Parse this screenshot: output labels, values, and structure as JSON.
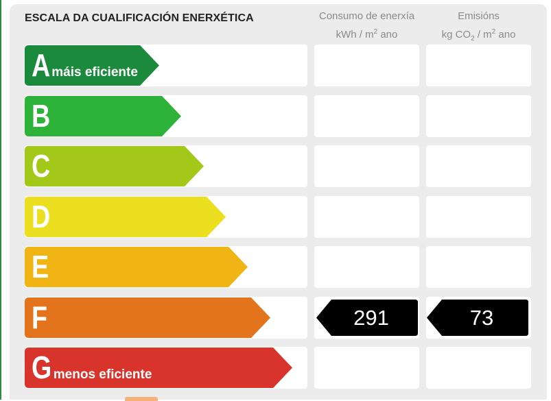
{
  "title": "ESCALA DA CUALIFICACIÓN ENERXÉTICA",
  "columns": {
    "consumption": {
      "line1": "Consumo de enerxía",
      "line2_unit": "kWh / m",
      "line2_sup": "2",
      "line2_rest": " ano"
    },
    "emissions": {
      "line1": "Emisións",
      "line2_unit": "kg CO",
      "line2_sub": "2",
      "line2_rest": " / m",
      "line2_sup": "2",
      "line2_rest2": " ano"
    }
  },
  "ratings": [
    {
      "letter": "A",
      "note": "máis eficiente",
      "color": "#1b8a3c",
      "consumption": "",
      "emissions": ""
    },
    {
      "letter": "B",
      "note": "",
      "color": "#2db33a",
      "consumption": "",
      "emissions": ""
    },
    {
      "letter": "C",
      "note": "",
      "color": "#a2c91a",
      "consumption": "",
      "emissions": ""
    },
    {
      "letter": "D",
      "note": "",
      "color": "#ecdf1f",
      "consumption": "",
      "emissions": ""
    },
    {
      "letter": "E",
      "note": "",
      "color": "#f0b414",
      "consumption": "",
      "emissions": ""
    },
    {
      "letter": "F",
      "note": "",
      "color": "#e4741c",
      "consumption": "291",
      "emissions": "73"
    },
    {
      "letter": "G",
      "note": "menos eficiente",
      "color": "#d9342b",
      "consumption": "",
      "emissions": ""
    }
  ],
  "current_rating": "F"
}
